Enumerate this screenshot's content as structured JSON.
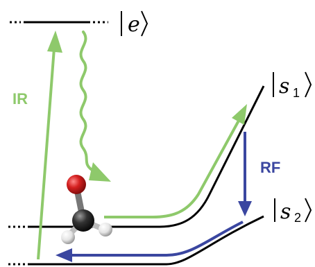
{
  "labels": {
    "excited_state": "e",
    "state_s1_base": "s",
    "state_s1_sub": "1",
    "state_s2_base": "s",
    "state_s2_sub": "2",
    "ir": "IR",
    "rf": "RF"
  },
  "colors": {
    "green": "#8ec96b",
    "blue": "#3a46a0",
    "black": "#000000",
    "oxygen_red": "#cc1f1f",
    "carbon_dark": "#2e2e2e",
    "hydrogen_white": "#f2f2f2"
  },
  "molecule": {
    "icon": "formaldehyde-molecule-icon"
  }
}
